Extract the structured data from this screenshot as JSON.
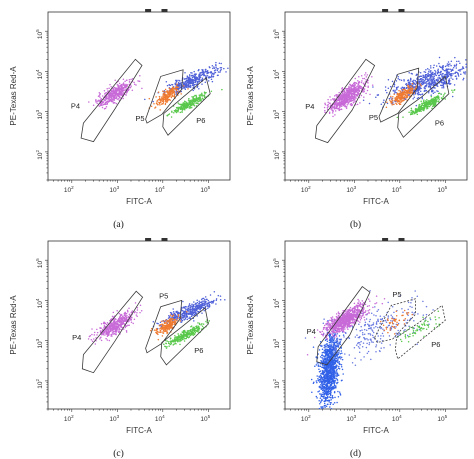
{
  "chart_data": [
    {
      "type": "scatter",
      "caption": "(a)",
      "xlabel": "FITC-A",
      "ylabel": "PE-Texas Red-A",
      "xscale": "log",
      "yscale": "log",
      "xlim": [
        30,
        300000
      ],
      "ylim": [
        20,
        300000
      ],
      "xticks": [
        2,
        3,
        4,
        5
      ],
      "yticks": [
        2,
        3,
        4,
        5
      ],
      "grid": false,
      "gates": [
        {
          "name": "P4",
          "points": [
            [
              180,
              520
            ],
            [
              2500,
              20000
            ],
            [
              3500,
              14000
            ],
            [
              900,
              1200
            ],
            [
              300,
              180
            ],
            [
              160,
              220
            ]
          ]
        },
        {
          "name": "P5",
          "points": [
            [
              4200,
              650
            ],
            [
              9000,
              7500
            ],
            [
              28000,
              11000
            ],
            [
              26000,
              3600
            ],
            [
              9500,
              850
            ],
            [
              4500,
              520
            ]
          ]
        },
        {
          "name": "P6",
          "points": [
            [
              10000,
              420
            ],
            [
              13000,
              260
            ],
            [
              110000,
              2800
            ],
            [
              90000,
              7000
            ],
            [
              28000,
              2300
            ],
            [
              10500,
              900
            ]
          ]
        }
      ],
      "populations": [
        {
          "name": "P4",
          "color": "#c86ad8",
          "n": 420,
          "center": [
            900,
            2800
          ],
          "spread": [
            0.2,
            0.16
          ],
          "rho": 0.75
        },
        {
          "name": "P5",
          "color": "#ef7a30",
          "n": 200,
          "center": [
            13000,
            2500
          ],
          "spread": [
            0.13,
            0.12
          ],
          "rho": 0.75
        },
        {
          "name": "P6",
          "color": "#59c84b",
          "n": 260,
          "center": [
            38000,
            1600
          ],
          "spread": [
            0.2,
            0.13
          ],
          "rho": 0.9
        },
        {
          "name": "other",
          "color": "#4e5fd8",
          "n": 380,
          "center": [
            45000,
            6000
          ],
          "spread": [
            0.3,
            0.17
          ],
          "rho": 0.85
        }
      ]
    },
    {
      "type": "scatter",
      "caption": "(b)",
      "xlabel": "FITC-A",
      "ylabel": "PE-Texas Red-A",
      "xscale": "log",
      "yscale": "log",
      "xlim": [
        30,
        300000
      ],
      "ylim": [
        20,
        300000
      ],
      "xticks": [
        2,
        3,
        4,
        5
      ],
      "yticks": [
        2,
        3,
        4,
        5
      ],
      "grid": false,
      "gates": [
        {
          "name": "P4",
          "points": [
            [
              150,
              450
            ],
            [
              1800,
              20000
            ],
            [
              2800,
              14000
            ],
            [
              900,
              1100
            ],
            [
              260,
              170
            ],
            [
              140,
              220
            ]
          ]
        },
        {
          "name": "P5",
          "points": [
            [
              3500,
              750
            ],
            [
              9000,
              8500
            ],
            [
              26000,
              12000
            ],
            [
              24000,
              3800
            ],
            [
              9000,
              900
            ],
            [
              3800,
              550
            ]
          ]
        },
        {
          "name": "P6",
          "points": [
            [
              9000,
              400
            ],
            [
              12000,
              230
            ],
            [
              120000,
              2800
            ],
            [
              100000,
              7500
            ],
            [
              30000,
              2300
            ],
            [
              9500,
              900
            ]
          ]
        }
      ],
      "populations": [
        {
          "name": "P4",
          "color": "#c86ad8",
          "n": 650,
          "center": [
            700,
            2400
          ],
          "spread": [
            0.2,
            0.18
          ],
          "rho": 0.75
        },
        {
          "name": "P5",
          "color": "#ef7a30",
          "n": 210,
          "center": [
            12000,
            2600
          ],
          "spread": [
            0.14,
            0.13
          ],
          "rho": 0.75
        },
        {
          "name": "P6",
          "color": "#59c84b",
          "n": 280,
          "center": [
            40000,
            1500
          ],
          "spread": [
            0.2,
            0.13
          ],
          "rho": 0.9
        },
        {
          "name": "other",
          "color": "#4e5fd8",
          "n": 650,
          "center": [
            40000,
            5500
          ],
          "spread": [
            0.45,
            0.22
          ],
          "rho": 0.7
        }
      ]
    },
    {
      "type": "scatter",
      "caption": "(c)",
      "xlabel": "FITC-A",
      "ylabel": "PE-Texas Red-A",
      "xscale": "log",
      "yscale": "log",
      "xlim": [
        30,
        300000
      ],
      "ylim": [
        20,
        300000
      ],
      "xticks": [
        2,
        3,
        4,
        5
      ],
      "yticks": [
        2,
        3,
        4,
        5
      ],
      "grid": false,
      "gates": [
        {
          "name": "P4",
          "points": [
            [
              180,
              450
            ],
            [
              2600,
              17000
            ],
            [
              3600,
              12000
            ],
            [
              900,
              1000
            ],
            [
              300,
              160
            ],
            [
              170,
              200
            ]
          ]
        },
        {
          "name": "P5",
          "points": [
            [
              4200,
              650
            ],
            [
              9000,
              7000
            ],
            [
              26000,
              10000
            ],
            [
              24000,
              3500
            ],
            [
              9500,
              850
            ],
            [
              4500,
              500
            ]
          ]
        },
        {
          "name": "P6",
          "points": [
            [
              9000,
              400
            ],
            [
              12000,
              250
            ],
            [
              100000,
              2600
            ],
            [
              85000,
              6500
            ],
            [
              26000,
              2200
            ],
            [
              9500,
              900
            ]
          ]
        }
      ],
      "populations": [
        {
          "name": "P4",
          "color": "#c86ad8",
          "n": 450,
          "center": [
            900,
            2400
          ],
          "spread": [
            0.2,
            0.16
          ],
          "rho": 0.75
        },
        {
          "name": "P5",
          "color": "#ef7a30",
          "n": 200,
          "center": [
            12500,
            2300
          ],
          "spread": [
            0.13,
            0.12
          ],
          "rho": 0.75
        },
        {
          "name": "P6",
          "color": "#59c84b",
          "n": 280,
          "center": [
            32000,
            1400
          ],
          "spread": [
            0.2,
            0.13
          ],
          "rho": 0.9
        },
        {
          "name": "other",
          "color": "#4e5fd8",
          "n": 380,
          "center": [
            40000,
            5500
          ],
          "spread": [
            0.3,
            0.17
          ],
          "rho": 0.85
        }
      ]
    },
    {
      "type": "scatter",
      "caption": "(d)",
      "xlabel": "FITC-A",
      "ylabel": "PE-Texas Red-A",
      "xscale": "log",
      "yscale": "log",
      "xlim": [
        30,
        300000
      ],
      "ylim": [
        20,
        300000
      ],
      "xticks": [
        2,
        3,
        4,
        5
      ],
      "yticks": [
        2,
        3,
        4,
        5
      ],
      "grid": false,
      "gates": [
        {
          "name": "P4",
          "points": [
            [
              160,
              700
            ],
            [
              1500,
              22000
            ],
            [
              2200,
              16000
            ],
            [
              800,
              1400
            ],
            [
              250,
              250
            ],
            [
              150,
              300
            ]
          ]
        },
        {
          "name": "P5",
          "points": [
            [
              2800,
              1200
            ],
            [
              6500,
              7500
            ],
            [
              22000,
              11000
            ],
            [
              22000,
              4500
            ],
            [
              7000,
              1100
            ],
            [
              3200,
              900
            ]
          ]
        },
        {
          "name": "P6",
          "points": [
            [
              8000,
              600
            ],
            [
              9000,
              350
            ],
            [
              100000,
              3200
            ],
            [
              85000,
              7500
            ],
            [
              25000,
              2700
            ],
            [
              8500,
              1200
            ]
          ]
        }
      ],
      "populations": [
        {
          "name": "P4",
          "color": "#c86ad8",
          "n": 800,
          "center": [
            650,
            3300
          ],
          "spread": [
            0.22,
            0.18
          ],
          "rho": 0.75
        },
        {
          "name": "P5",
          "color": "#ef7a30",
          "n": 45,
          "center": [
            8000,
            3000
          ],
          "spread": [
            0.15,
            0.13
          ],
          "rho": 0.6
        },
        {
          "name": "P6",
          "color": "#59c84b",
          "n": 60,
          "center": [
            28000,
            2000
          ],
          "spread": [
            0.22,
            0.15
          ],
          "rho": 0.8
        },
        {
          "name": "other",
          "color": "#3060e8",
          "n": 1100,
          "center": [
            280,
            200
          ],
          "spread": [
            0.12,
            0.45
          ],
          "rho": 0.3
        },
        {
          "name": "other",
          "color": "#6a7ae0",
          "n": 260,
          "center": [
            3000,
            1800
          ],
          "spread": [
            0.55,
            0.35
          ],
          "rho": 0.6
        }
      ]
    }
  ]
}
